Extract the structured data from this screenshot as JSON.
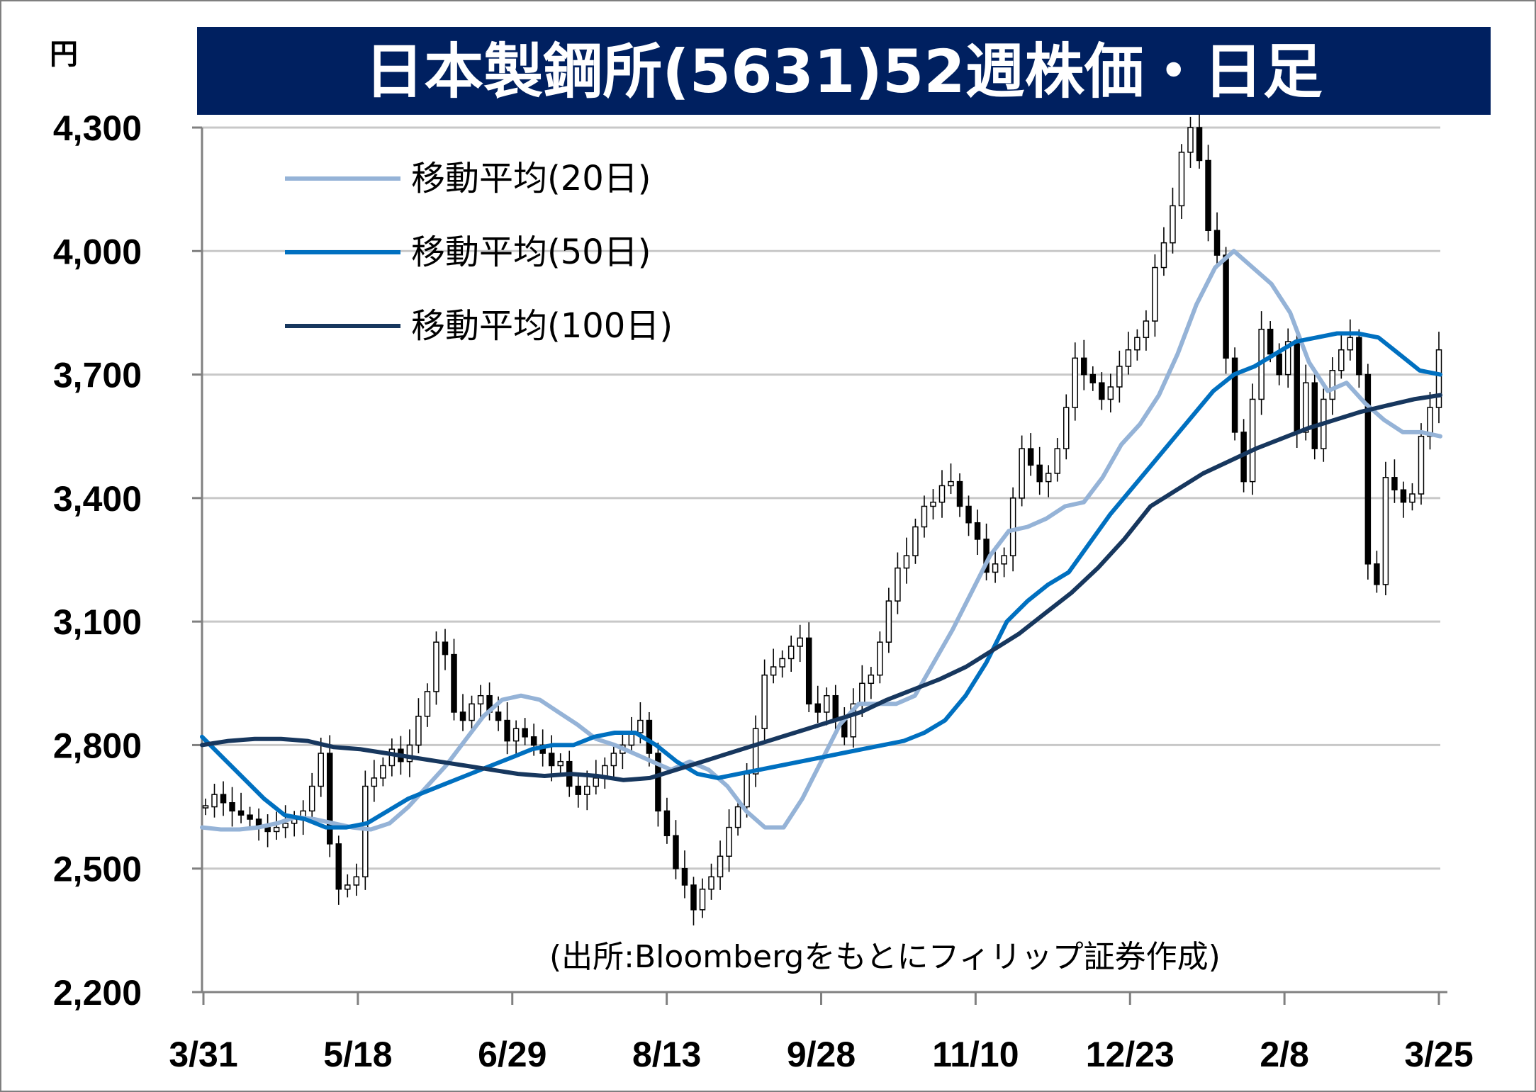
{
  "chart_data": {
    "type": "candlestick",
    "title": "日本製鋼所(5631)52週株価・日足",
    "unit_label": "円",
    "source": "(出所:Bloombergをもとにフィリップ証券作成)",
    "ylim": [
      2200,
      4300
    ],
    "y_ticks": [
      "4,300",
      "4,000",
      "3,700",
      "3,400",
      "3,100",
      "2,800",
      "2,500",
      "2,200"
    ],
    "y_tick_values": [
      4300,
      4000,
      3700,
      3400,
      3100,
      2800,
      2500,
      2200
    ],
    "x_ticks": [
      "3/31",
      "5/18",
      "6/29",
      "8/13",
      "9/28",
      "11/10",
      "12/23",
      "2/8",
      "3/25"
    ],
    "grid": true,
    "legend_position": "top-left",
    "colors": {
      "ma20": "#95b3d7",
      "ma50": "#0070c0",
      "ma100": "#17375e",
      "candle": "#000000",
      "title_bg": "#002060",
      "grid": "#c8c8c8"
    },
    "series": [
      {
        "name": "移動平均(20日)",
        "key": "ma20",
        "values": [
          2600,
          2595,
          2595,
          2600,
          2610,
          2625,
          2620,
          2610,
          2600,
          2595,
          2610,
          2650,
          2700,
          2750,
          2810,
          2870,
          2910,
          2920,
          2910,
          2880,
          2850,
          2815,
          2800,
          2780,
          2760,
          2740,
          2760,
          2740,
          2700,
          2640,
          2600,
          2600,
          2670,
          2760,
          2850,
          2900,
          2900,
          2900,
          2920,
          3000,
          3080,
          3170,
          3260,
          3320,
          3330,
          3350,
          3380,
          3390,
          3450,
          3530,
          3580,
          3650,
          3750,
          3870,
          3960,
          4000,
          3960,
          3920,
          3850,
          3730,
          3660,
          3680,
          3630,
          3590,
          3560,
          3560,
          3550
        ]
      },
      {
        "name": "移動平均(50日)",
        "key": "ma50",
        "values": [
          2820,
          2770,
          2720,
          2670,
          2630,
          2620,
          2600,
          2600,
          2610,
          2640,
          2670,
          2690,
          2710,
          2730,
          2750,
          2770,
          2790,
          2800,
          2800,
          2820,
          2830,
          2830,
          2800,
          2760,
          2730,
          2720,
          2730,
          2740,
          2750,
          2760,
          2770,
          2780,
          2790,
          2800,
          2810,
          2830,
          2860,
          2920,
          3000,
          3100,
          3150,
          3190,
          3220,
          3290,
          3360,
          3420,
          3480,
          3540,
          3600,
          3660,
          3700,
          3720,
          3750,
          3780,
          3790,
          3800,
          3800,
          3790,
          3750,
          3710,
          3700
        ]
      },
      {
        "name": "移動平均(100日)",
        "key": "ma100",
        "values": [
          2800,
          2810,
          2815,
          2815,
          2810,
          2795,
          2790,
          2780,
          2770,
          2760,
          2750,
          2740,
          2730,
          2725,
          2730,
          2725,
          2715,
          2720,
          2740,
          2760,
          2780,
          2800,
          2820,
          2840,
          2860,
          2880,
          2910,
          2935,
          2960,
          2990,
          3030,
          3070,
          3120,
          3170,
          3230,
          3300,
          3380,
          3420,
          3460,
          3490,
          3520,
          3545,
          3570,
          3590,
          3610,
          3625,
          3640,
          3650
        ]
      }
    ],
    "candle_closes": [
      2650,
      2680,
      2660,
      2640,
      2630,
      2620,
      2600,
      2590,
      2600,
      2610,
      2620,
      2640,
      2700,
      2780,
      2560,
      2450,
      2460,
      2480,
      2700,
      2720,
      2750,
      2790,
      2760,
      2800,
      2870,
      2930,
      3050,
      3020,
      2880,
      2860,
      2900,
      2920,
      2880,
      2860,
      2810,
      2840,
      2820,
      2800,
      2780,
      2750,
      2760,
      2700,
      2680,
      2700,
      2720,
      2750,
      2780,
      2800,
      2830,
      2860,
      2780,
      2640,
      2580,
      2500,
      2460,
      2400,
      2450,
      2480,
      2530,
      2600,
      2650,
      2730,
      2840,
      2970,
      2990,
      3010,
      3040,
      3060,
      2900,
      2880,
      2920,
      2860,
      2820,
      2900,
      2950,
      2970,
      3050,
      3150,
      3230,
      3260,
      3330,
      3380,
      3390,
      3430,
      3440,
      3380,
      3340,
      3300,
      3220,
      3240,
      3260,
      3400,
      3520,
      3480,
      3440,
      3460,
      3520,
      3620,
      3740,
      3700,
      3680,
      3640,
      3670,
      3720,
      3760,
      3790,
      3830,
      3960,
      4020,
      4110,
      4240,
      4300,
      4220,
      4050,
      3990,
      3740,
      3560,
      3440,
      3640,
      3810,
      3750,
      3700,
      3780,
      3560,
      3680,
      3520,
      3640,
      3710,
      3760,
      3790,
      3700,
      3240,
      3190,
      3450,
      3420,
      3390,
      3410,
      3550,
      3620,
      3760
    ]
  }
}
